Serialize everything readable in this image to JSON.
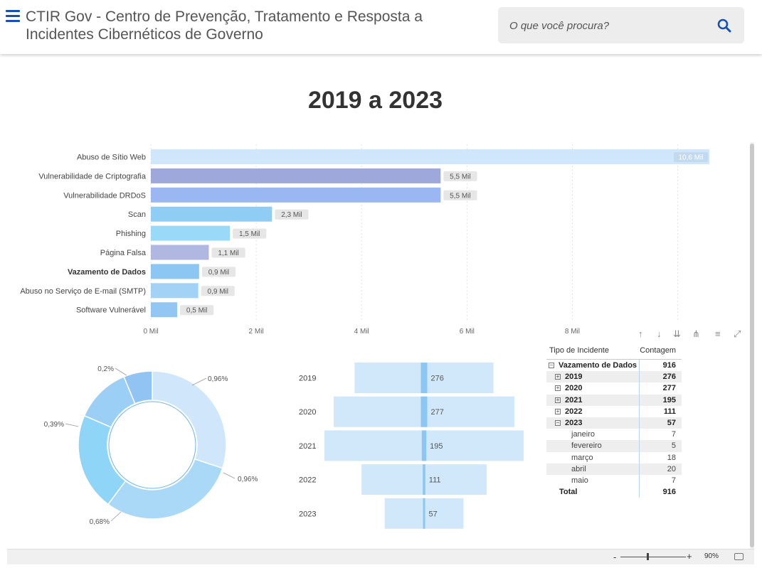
{
  "header": {
    "title": "CTIR Gov - Centro de Prevenção, Tratamento e Resposta a Incidentes Cibernéticos de Governo",
    "search_placeholder": "O que você procura?"
  },
  "report": {
    "title": "2019 a 2023"
  },
  "chart_data": [
    {
      "type": "bar",
      "orientation": "horizontal",
      "categories": [
        "Abuso de Sítio Web",
        "Vulnerabilidade de Criptografia",
        "Vulnerabilidade DRDoS",
        "Scan",
        "Phishing",
        "Página Falsa",
        "Vazamento de Dados",
        "Abuso no Serviço de E-mail (SMTP)",
        "Software Vulnerável"
      ],
      "values": [
        10600,
        5500,
        5500,
        2300,
        1500,
        1100,
        916,
        900,
        500
      ],
      "data_labels": [
        "10,6 Mil",
        "5,5 Mil",
        "5,5 Mil",
        "2,3 Mil",
        "1,5 Mil",
        "1,1 Mil",
        "0,9 Mil",
        "0,9 Mil",
        "0,5 Mil"
      ],
      "bar_colors": [
        "#cfe6fb",
        "#9fa8da",
        "#9bb7f2",
        "#90cdf4",
        "#9ad9f7",
        "#b0b7e0",
        "#8cc6f2",
        "#a2d2f5",
        "#94c6f4"
      ],
      "highlighted_category": "Vazamento de Dados",
      "x_ticks": [
        "0 Mil",
        "2 Mil",
        "4 Mil",
        "6 Mil",
        "8 Mil"
      ],
      "x_tick_values": [
        0,
        2000,
        4000,
        6000,
        8000
      ],
      "xlim": [
        0,
        10600
      ],
      "grid": true
    },
    {
      "type": "pie",
      "variant": "donut",
      "slices": [
        {
          "label": "0,96%",
          "value": 0.96,
          "color": "#cfe6fb"
        },
        {
          "label": "0,96%",
          "value": 0.96,
          "color": "#aad9f8"
        },
        {
          "label": "0,68%",
          "value": 0.68,
          "color": "#8fd5f7"
        },
        {
          "label": "0,39%",
          "value": 0.39,
          "color": "#9ccff6"
        },
        {
          "label": "0,2%",
          "value": 0.2,
          "color": "#92c4f3"
        }
      ]
    },
    {
      "type": "bar",
      "variant": "funnel",
      "categories": [
        "2019",
        "2020",
        "2021",
        "2022",
        "2023"
      ],
      "values": [
        276,
        277,
        195,
        111,
        57
      ],
      "total_values": [
        3000,
        3900,
        4300,
        2700,
        1700
      ],
      "color_total": "#d1e8fb",
      "color_value": "#8cc6f2"
    }
  ],
  "matrix": {
    "headers": [
      "Tipo de Incidente",
      "Contagem"
    ],
    "rows": [
      {
        "label": "Vazamento de Dados",
        "value": "916"
      },
      {
        "label": "2019",
        "value": "276"
      },
      {
        "label": "2020",
        "value": "277"
      },
      {
        "label": "2021",
        "value": "195"
      },
      {
        "label": "2022",
        "value": "111"
      },
      {
        "label": "2023",
        "value": "57"
      },
      {
        "label": "janeiro",
        "value": "7"
      },
      {
        "label": "fevereiro",
        "value": "5"
      },
      {
        "label": "março",
        "value": "18"
      },
      {
        "label": "abril",
        "value": "20"
      },
      {
        "label": "maio",
        "value": "7"
      },
      {
        "label": "Total",
        "value": "916"
      }
    ]
  },
  "zoom": {
    "minus": "-",
    "plus": "+",
    "level": "90%"
  },
  "icons": [
    "menu-icon",
    "search-icon",
    "arrow-up-icon",
    "arrow-down-icon",
    "double-arrow-down-icon",
    "drill-icon",
    "filter-icon",
    "focus-mode-icon",
    "fit-page-icon"
  ]
}
